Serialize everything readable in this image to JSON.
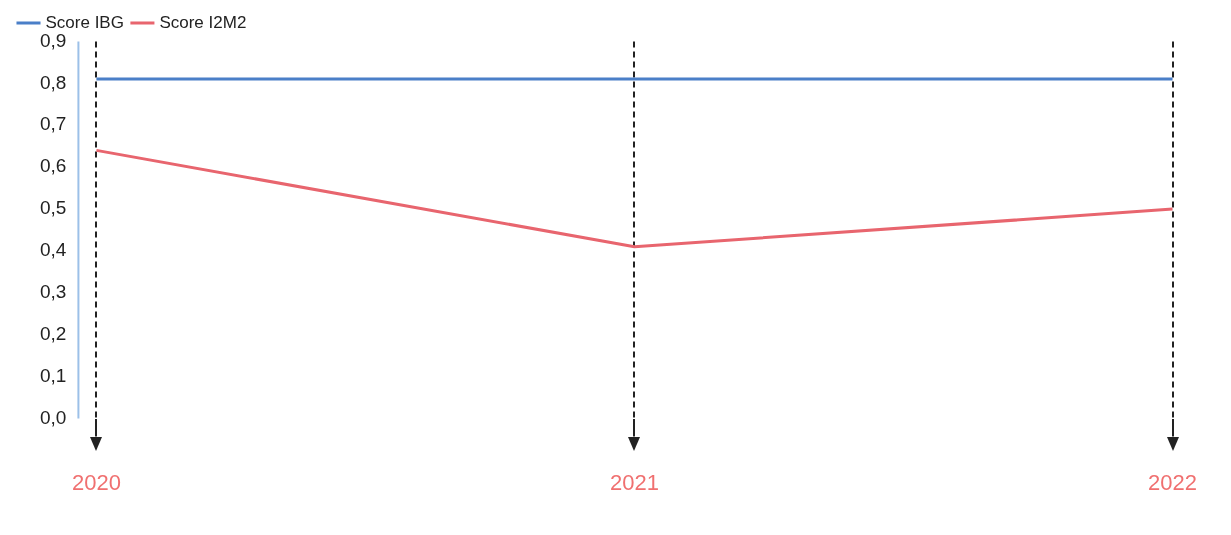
{
  "chart_data": {
    "type": "line",
    "categories": [
      "2020",
      "2021",
      "2022"
    ],
    "series": [
      {
        "name": "Score IBG",
        "color": "#4a7fc8",
        "values": [
          0.81,
          0.81,
          0.81
        ]
      },
      {
        "name": "Score I2M2",
        "color": "#e8656e",
        "values": [
          0.64,
          0.41,
          0.5
        ]
      }
    ],
    "ylim": [
      0,
      0.9
    ],
    "yticks": [
      {
        "value": 0,
        "label": "0,0"
      },
      {
        "value": 0.1,
        "label": "0,1"
      },
      {
        "value": 0.2,
        "label": "0,2"
      },
      {
        "value": 0.3,
        "label": "0,3"
      },
      {
        "value": 0.4,
        "label": "0,4"
      },
      {
        "value": 0.5,
        "label": "0,5"
      },
      {
        "value": 0.6,
        "label": "0,6"
      },
      {
        "value": 0.7,
        "label": "0,7"
      },
      {
        "value": 0.8,
        "label": "0,8"
      },
      {
        "value": 0.9,
        "label": "0,9"
      }
    ],
    "grid": "x",
    "legend": "top left",
    "marker": "none",
    "line_style": "solid"
  }
}
